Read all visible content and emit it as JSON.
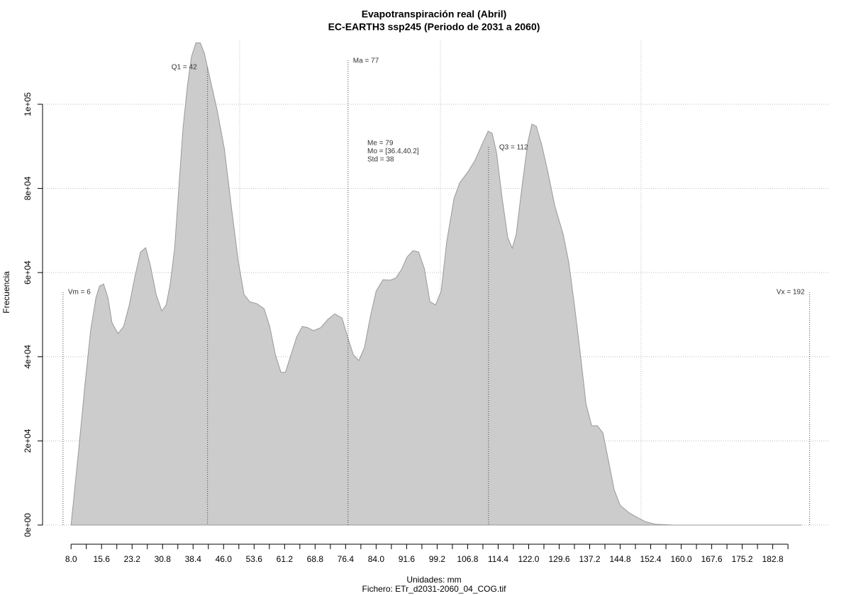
{
  "chart_data": {
    "type": "area",
    "title": "Evapotranspiración real (Abril)",
    "subtitle": "EC-EARTH3 ssp245 (Periodo de 2031 a 2060)",
    "xlabel": "Unidades: mm",
    "ylabel": "Frecuencia",
    "footnote": "Fichero: ETr_d2031-2060_04_COG.tif",
    "color": "#cccccc",
    "line_color": "#999999",
    "grid": true,
    "xlim": [
      0.9,
      197
    ],
    "ylim": [
      0,
      115000
    ],
    "xgrid": [
      50,
      100,
      150
    ],
    "xticks": [
      {
        "value": 8,
        "label": "8.0"
      },
      {
        "value": 15.6,
        "label": "15.6"
      },
      {
        "value": 23.2,
        "label": "23.2"
      },
      {
        "value": 30.8,
        "label": "30.8"
      },
      {
        "value": 38.4,
        "label": "38.4"
      },
      {
        "value": 46,
        "label": "46.0"
      },
      {
        "value": 53.6,
        "label": "53.6"
      },
      {
        "value": 61.2,
        "label": "61.2"
      },
      {
        "value": 68.8,
        "label": "68.8"
      },
      {
        "value": 76.4,
        "label": "76.4"
      },
      {
        "value": 84,
        "label": "84.0"
      },
      {
        "value": 91.6,
        "label": "91.6"
      },
      {
        "value": 99.2,
        "label": "99.2"
      },
      {
        "value": 106.8,
        "label": "106.8"
      },
      {
        "value": 114.4,
        "label": "114.4"
      },
      {
        "value": 122,
        "label": "122.0"
      },
      {
        "value": 129.6,
        "label": "129.6"
      },
      {
        "value": 137.2,
        "label": "137.2"
      },
      {
        "value": 144.8,
        "label": "144.8"
      },
      {
        "value": 152.4,
        "label": "152.4"
      },
      {
        "value": 160,
        "label": "160.0"
      },
      {
        "value": 167.6,
        "label": "167.6"
      },
      {
        "value": 175.2,
        "label": "175.2"
      },
      {
        "value": 182.8,
        "label": "182.8"
      }
    ],
    "xminorticks": [
      11.8,
      19.4,
      27,
      34.6,
      42.2,
      49.8,
      57.4,
      65,
      72.6,
      80.2,
      87.8,
      95.4,
      103,
      110.6,
      118.2,
      125.8,
      133.4,
      141,
      148.6,
      156.2,
      163.8,
      171.4,
      179,
      186.6
    ],
    "yticks": [
      {
        "value": 0,
        "label": "0e+00"
      },
      {
        "value": 20000,
        "label": "2e+04"
      },
      {
        "value": 40000,
        "label": "4e+04"
      },
      {
        "value": 60000,
        "label": "6e+04"
      },
      {
        "value": 80000,
        "label": "8e+04"
      },
      {
        "value": 100000,
        "label": "1e+05"
      }
    ],
    "x": [
      8.0,
      9.8,
      11.5,
      12.9,
      14.2,
      15.1,
      16.1,
      17.2,
      18.2,
      19.7,
      21.1,
      22.5,
      23.9,
      25.3,
      26.6,
      27.8,
      29.2,
      30.6,
      31.7,
      32.7,
      33.8,
      34.9,
      35.9,
      37.0,
      38.0,
      39.1,
      40.2,
      41.2,
      42.6,
      44.4,
      46.2,
      47.9,
      49.7,
      51.1,
      52.5,
      54.3,
      56.1,
      57.5,
      58.9,
      60.3,
      61.4,
      62.8,
      64.2,
      65.6,
      67.0,
      68.4,
      70.2,
      72.0,
      73.7,
      75.5,
      76.9,
      78.3,
      79.7,
      81.1,
      82.6,
      84.0,
      85.7,
      87.5,
      88.9,
      90.3,
      91.7,
      93.2,
      94.6,
      96.0,
      97.4,
      98.8,
      100.2,
      101.6,
      103.4,
      104.8,
      106.9,
      108.7,
      110.5,
      111.9,
      112.9,
      114.0,
      115.4,
      116.8,
      117.9,
      118.9,
      120.4,
      121.8,
      122.8,
      123.9,
      125.3,
      126.7,
      128.5,
      130.6,
      132.0,
      133.4,
      134.9,
      136.3,
      137.7,
      139.1,
      140.5,
      141.9,
      143.3,
      144.8,
      146.9,
      148.7,
      151.1,
      153.6,
      158.2,
      190.0
    ],
    "values": [
      0,
      16900,
      33700,
      46400,
      54000,
      56800,
      57300,
      54000,
      48100,
      45500,
      47200,
      52300,
      59000,
      64900,
      65900,
      61500,
      54800,
      50900,
      52300,
      57300,
      65700,
      80900,
      94400,
      104500,
      111300,
      114600,
      114600,
      112100,
      106200,
      98600,
      89400,
      75900,
      62400,
      54800,
      53100,
      52600,
      51400,
      47200,
      40500,
      36300,
      36300,
      40500,
      44700,
      47200,
      46900,
      46200,
      46900,
      48900,
      50200,
      49200,
      44700,
      40500,
      39100,
      42200,
      49700,
      55600,
      58300,
      58200,
      58700,
      60700,
      63700,
      65200,
      64900,
      61000,
      53100,
      52300,
      55600,
      67400,
      77600,
      81300,
      84000,
      86800,
      90700,
      93600,
      93100,
      88500,
      77600,
      68300,
      65800,
      69100,
      80900,
      91000,
      95300,
      94800,
      90200,
      84300,
      75900,
      69100,
      62400,
      52300,
      40500,
      28700,
      23600,
      23600,
      21900,
      15200,
      8400,
      4700,
      3000,
      2000,
      800,
      200,
      0,
      0
    ],
    "annotations": [
      {
        "label": "Vm = 6",
        "x": 6
      },
      {
        "label": "Q1 = 42",
        "x": 42
      },
      {
        "label": "Ma = 77",
        "x": 77
      },
      {
        "label": "Q3 = 112",
        "x": 112
      },
      {
        "label": "Vx = 192",
        "x": 192
      }
    ],
    "stats": [
      "Me = 79",
      "Mo = [36.4,40.2]",
      "Std = 38"
    ]
  }
}
